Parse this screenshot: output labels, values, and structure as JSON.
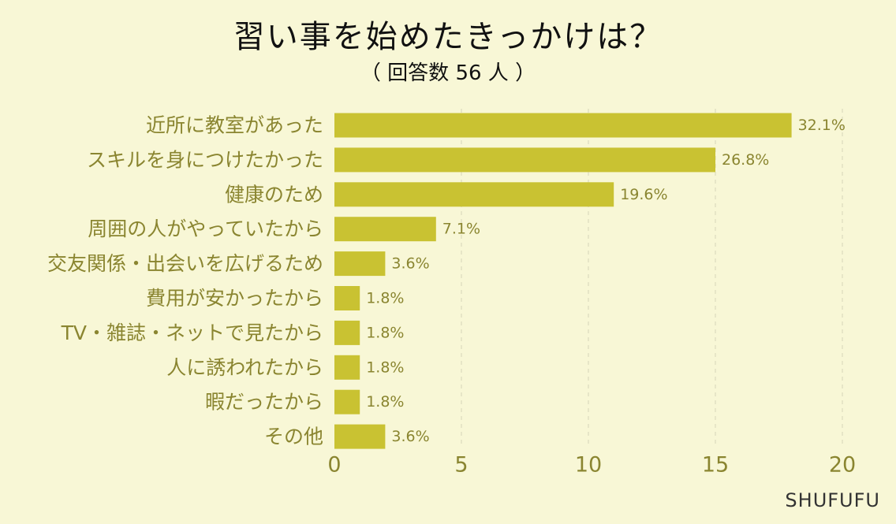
{
  "title": "習い事を始めたきっかけは？",
  "subtitle": "（ 回答数 56 人 ）",
  "brand": "SHUFUFU",
  "colors": {
    "bar": "#c9c232",
    "label": "#8a8530",
    "grid": "#d6d4b8",
    "background": "#f8f7d6"
  },
  "chart_data": {
    "type": "bar",
    "orientation": "horizontal",
    "categories": [
      "近所に教室があった",
      "スキルを身につけたかった",
      "健康のため",
      "周囲の人がやっていたから",
      "交友関係・出会いを広げるため",
      "費用が安かったから",
      "TV・雑誌・ネットで見たから",
      "人に誘われたから",
      "暇だったから",
      "その他"
    ],
    "values": [
      18,
      15,
      11,
      4,
      2,
      1,
      1,
      1,
      1,
      2
    ],
    "data_labels": [
      "32.1%",
      "26.8%",
      "19.6%",
      "7.1%",
      "3.6%",
      "1.8%",
      "1.8%",
      "1.8%",
      "1.8%",
      "3.6%"
    ],
    "xlim": [
      0,
      20
    ],
    "xticks": [
      0,
      5,
      10,
      15,
      20
    ],
    "grid": "vertical-dashed",
    "legend": "none"
  }
}
